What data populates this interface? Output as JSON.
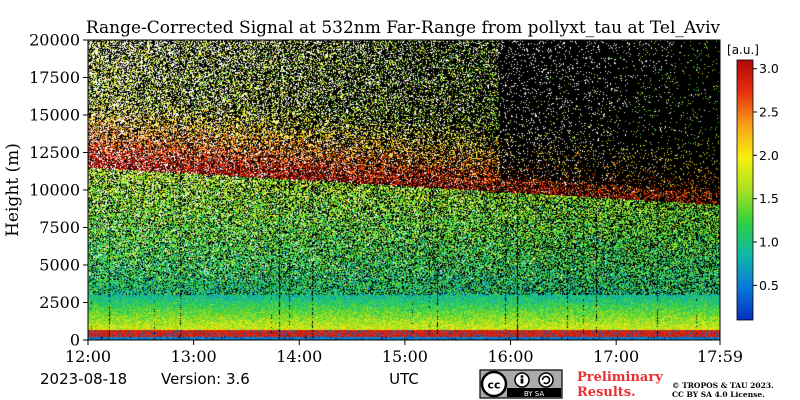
{
  "chart_data": {
    "type": "heatmap",
    "title": "Range-Corrected Signal at 532nm Far-Range from pollyxt_tau at Tel_Aviv",
    "xlabel": "UTC",
    "ylabel": "Height (m)",
    "x_ticks": [
      "12:00",
      "13:00",
      "14:00",
      "15:00",
      "16:00",
      "17:00",
      "17:59"
    ],
    "x_tick_hours": [
      12.0,
      13.0,
      14.0,
      15.0,
      16.0,
      17.0,
      17.983
    ],
    "xlim": [
      12.0,
      17.983
    ],
    "y_ticks": [
      0,
      2500,
      5000,
      7500,
      10000,
      12500,
      15000,
      17500,
      20000
    ],
    "ylim": [
      0,
      20000
    ],
    "colorbar": {
      "unit_label": "[a.u.]",
      "ticks": [
        0.5,
        1.0,
        1.5,
        2.0,
        2.5,
        3.0
      ],
      "tick_labels": [
        "0.5",
        "1.0",
        "1.5",
        "2.0",
        "2.5",
        "3.0"
      ],
      "range": [
        0.1,
        3.1
      ],
      "colormap": [
        "#0030c0",
        "#0a78d8",
        "#10b8a8",
        "#30d040",
        "#a8e020",
        "#f8f010",
        "#f8a018",
        "#e83010",
        "#b00808"
      ]
    },
    "layers": [
      {
        "feature": "near-surface layer",
        "height_m": [
          200,
          700
        ],
        "value": 3.0
      },
      {
        "feature": "lower troposphere",
        "height_m": [
          700,
          3000
        ],
        "value": 1.3
      },
      {
        "feature": "free troposphere",
        "height_m": [
          3000,
          9000
        ],
        "value": 0.8
      },
      {
        "feature": "upper layer (12:00–13:00)",
        "height_m": [
          11000,
          16500
        ],
        "value": 2.6
      },
      {
        "feature": "upper layer (15:00–17:00)",
        "height_m": [
          9000,
          11000
        ],
        "value": 2.7
      }
    ],
    "grid": false
  },
  "footer": {
    "date": "2023-08-18",
    "version": "Version: 3.6",
    "cc_badge": "BY  SA",
    "preliminary_line1": "Preliminary",
    "preliminary_line2": "Results.",
    "copyright_line1": "© TROPOS & TAU 2023.",
    "copyright_line2": "CC BY SA 4.0 License."
  },
  "colors": {
    "preliminary": "#e83030",
    "background": "#000000",
    "badge_bg": "#aaaaaa"
  }
}
